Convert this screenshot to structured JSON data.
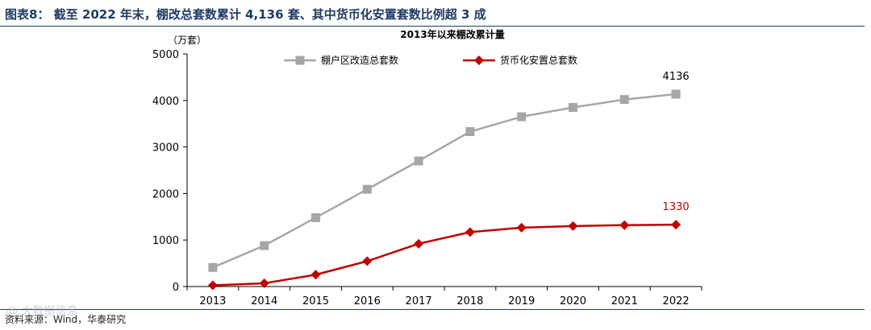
{
  "figure": {
    "title": "图表8：  截至 2022 年末，棚改总套数累计 4,136 套、其中货币化安置套数比例超 3 成",
    "source": "资料来源：Wind，华泰研究",
    "watermark": "@ 大数据信息"
  },
  "chart_data": {
    "type": "line",
    "title": "2013年以来棚改累计量",
    "ylabel": "（万套）",
    "xlabel": "",
    "categories": [
      "2013",
      "2014",
      "2015",
      "2016",
      "2017",
      "2018",
      "2019",
      "2020",
      "2021",
      "2022"
    ],
    "ylim": [
      0,
      5000
    ],
    "yticks": [
      0,
      1000,
      2000,
      3000,
      4000,
      5000
    ],
    "grid": false,
    "legend_position": "top",
    "series": [
      {
        "name": "棚户区改造总套数",
        "color": "#a6a6a6",
        "marker": "square",
        "values": [
          410,
          880,
          1480,
          2090,
          2700,
          3330,
          3650,
          3850,
          4020,
          4136
        ],
        "end_label": "4136",
        "end_label_color": "#000000"
      },
      {
        "name": "货币化安置总套数",
        "color": "#c00000",
        "marker": "diamond",
        "values": [
          25,
          70,
          255,
          545,
          920,
          1170,
          1265,
          1300,
          1320,
          1330
        ],
        "end_label": "1330",
        "end_label_color": "#c00000"
      }
    ]
  }
}
